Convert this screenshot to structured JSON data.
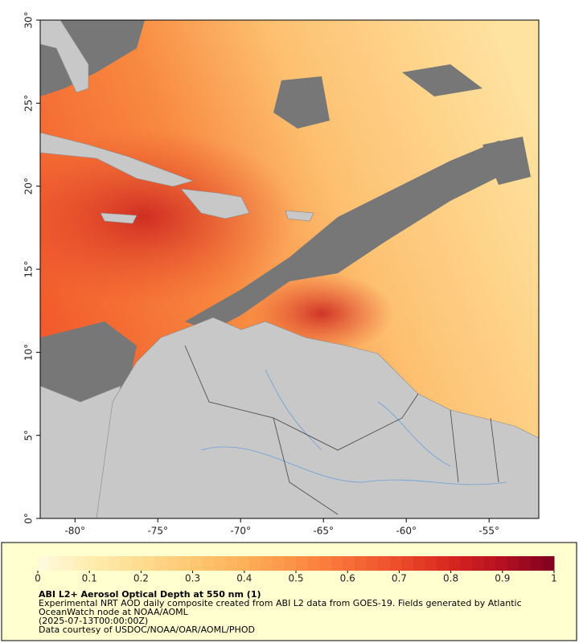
{
  "map": {
    "xlim": [
      -82.1,
      -52.0
    ],
    "ylim": [
      0,
      30
    ],
    "xticks": [
      {
        "value": -80,
        "label": "-80°"
      },
      {
        "value": -75,
        "label": "-75°"
      },
      {
        "value": -70,
        "label": "-70°"
      },
      {
        "value": -65,
        "label": "-65°"
      },
      {
        "value": -60,
        "label": "-60°"
      },
      {
        "value": -55,
        "label": "-55°"
      }
    ],
    "yticks": [
      {
        "value": 0,
        "label": "0°"
      },
      {
        "value": 5,
        "label": "5°"
      },
      {
        "value": 10,
        "label": "10°"
      },
      {
        "value": 15,
        "label": "15°"
      },
      {
        "value": 20,
        "label": "20°"
      },
      {
        "value": 25,
        "label": "25°"
      },
      {
        "value": 30,
        "label": "30°"
      }
    ]
  },
  "colorbar": {
    "lim": [
      0,
      1
    ],
    "ticks": [
      0,
      0.1,
      0.2,
      0.3,
      0.4,
      0.5,
      0.6,
      0.7,
      0.8,
      0.9,
      1
    ],
    "colors": [
      "#fffbe0",
      "#ffedb0",
      "#fedc90",
      "#fec872",
      "#fdb058",
      "#fc9046",
      "#f86e38",
      "#ec4c2b",
      "#d8261f",
      "#b41022",
      "#7f0020"
    ]
  },
  "footer": {
    "title": "ABI L2+ Aerosol Optical Depth at 550 nm (1)",
    "description": "Experimental NRT AOD daily composite created from ABI L2 data from GOES-19. Fields generated by Atlantic OceanWatch node at NOAA/AOML",
    "date": "(2025-07-13T00:00:00Z)",
    "credit": "Data courtesy of USDOC/NOAA/OAR/AOML/PHOD"
  }
}
